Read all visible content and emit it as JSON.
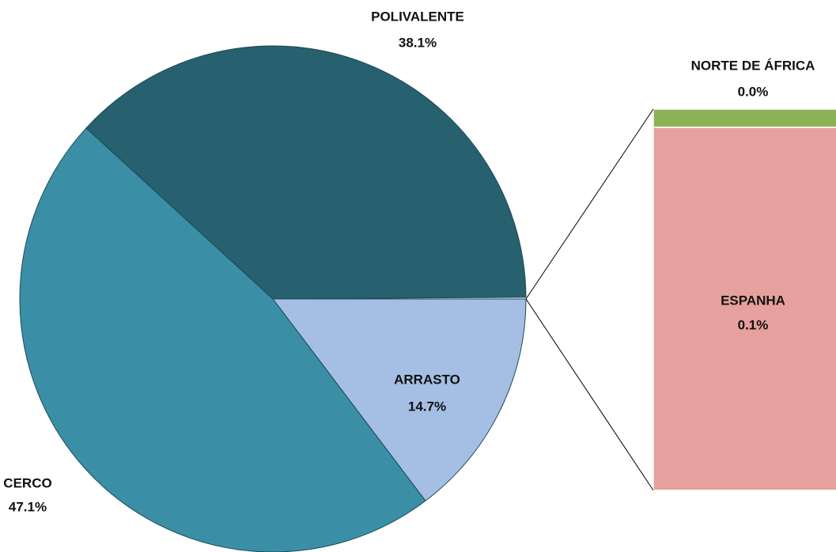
{
  "chart_data": [
    {
      "type": "pie",
      "categories": [
        "ARRASTO",
        "CERCO",
        "POLIVALENTE"
      ],
      "values": [
        14.7,
        47.1,
        38.1
      ],
      "value_labels": [
        "14.7%",
        "47.1%",
        "38.1%"
      ],
      "colors": [
        "#a4bfe3",
        "#3a8fa6",
        "#27606f"
      ]
    },
    {
      "type": "bar",
      "categories": [
        "ESPANHA",
        "NORTE DE ÁFRICA"
      ],
      "values": [
        0.1,
        0.005
      ],
      "value_labels": [
        "0.1%",
        "0.0%"
      ],
      "colors": [
        "#e6a09d",
        "#8db255"
      ]
    }
  ]
}
